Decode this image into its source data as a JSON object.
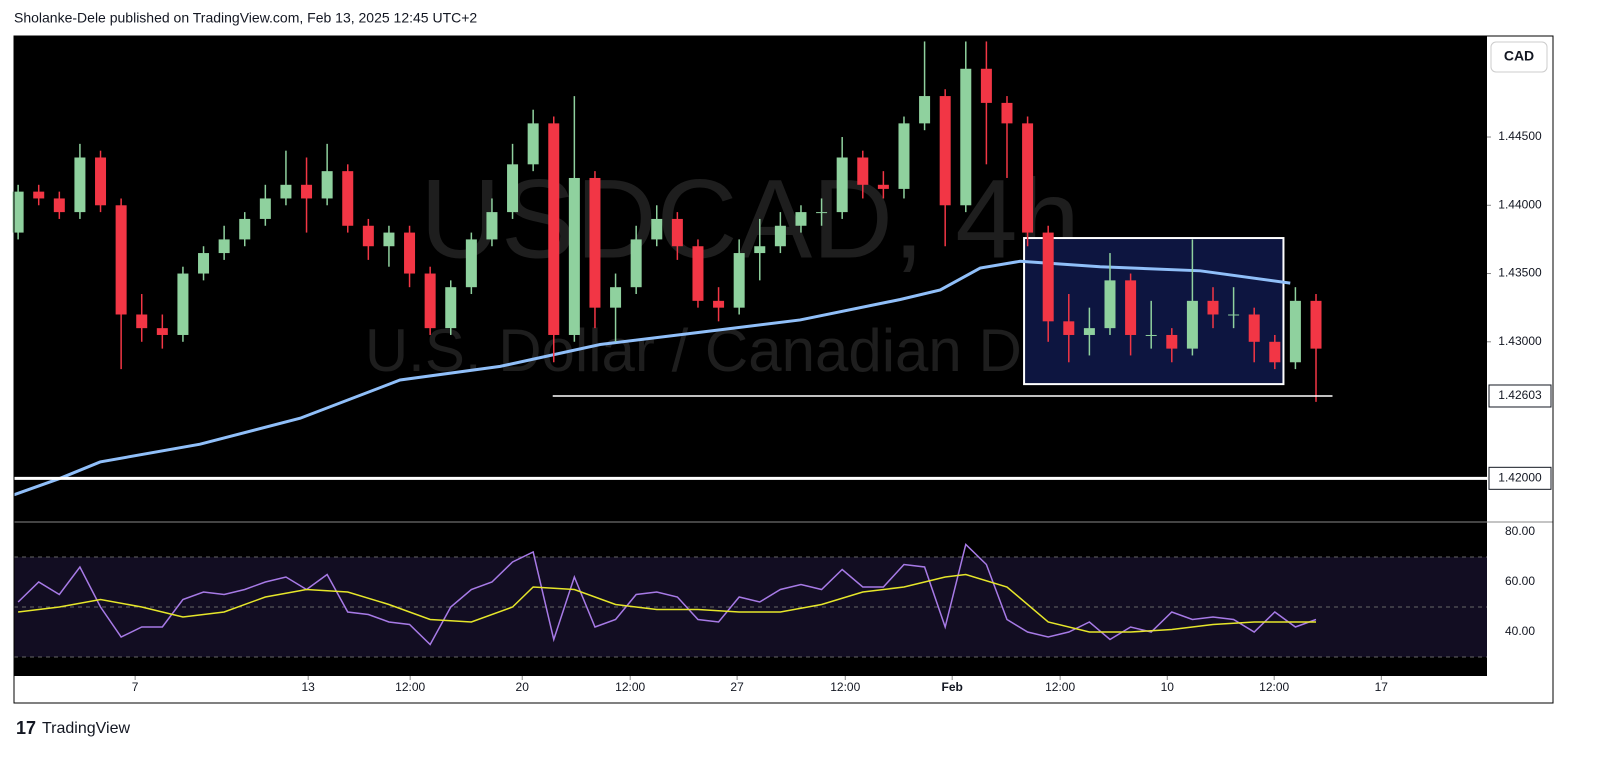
{
  "header": {
    "text": "Sholanke-Dele published on TradingView.com, Feb 13, 2025 12:45 UTC+2"
  },
  "footer": {
    "brand": "TradingView"
  },
  "currency_button": "CAD",
  "chart_data": [
    {
      "type": "candlestick",
      "watermark": "USDCAD, 4h",
      "subtitle": "U.S. Dollar / Canadian Dollar",
      "up_color": "#8fd19e",
      "down_color": "#f23645",
      "xlim": [
        -0.2,
        71.3
      ],
      "ylim": [
        1.4168,
        1.4524
      ],
      "yticks": [
        {
          "value": 1.445,
          "label": "1.44500"
        },
        {
          "value": 1.44,
          "label": "1.44000"
        },
        {
          "value": 1.435,
          "label": "1.43500"
        },
        {
          "value": 1.43,
          "label": "1.43000"
        }
      ],
      "open": [
        1.438,
        1.441,
        1.4405,
        1.4395,
        1.4435,
        1.44,
        1.432,
        1.431,
        1.4305,
        1.435,
        1.4365,
        1.4375,
        1.439,
        1.4405,
        1.4415,
        1.4405,
        1.4425,
        1.4385,
        1.437,
        1.438,
        1.435,
        1.431,
        1.434,
        1.4375,
        1.4395,
        1.443,
        1.446,
        1.4305,
        1.442,
        1.4325,
        1.434,
        1.4375,
        1.439,
        1.437,
        1.433,
        1.4325,
        1.4365,
        1.437,
        1.4385,
        1.4395,
        1.4395,
        1.4435,
        1.4415,
        1.4412,
        1.446,
        1.448,
        1.44,
        1.45,
        1.4475,
        1.446,
        1.438,
        1.4315,
        1.4305,
        1.431,
        1.4345,
        1.4305,
        1.4305,
        1.4295,
        1.433,
        1.432,
        1.432,
        1.43,
        1.4285,
        1.433
      ],
      "high": [
        1.4415,
        1.4415,
        1.441,
        1.4445,
        1.444,
        1.4405,
        1.4335,
        1.432,
        1.4355,
        1.437,
        1.4385,
        1.4395,
        1.4415,
        1.444,
        1.4435,
        1.4445,
        1.443,
        1.439,
        1.4385,
        1.4385,
        1.4355,
        1.4345,
        1.438,
        1.4405,
        1.4445,
        1.447,
        1.4465,
        1.448,
        1.4425,
        1.435,
        1.4385,
        1.44,
        1.4395,
        1.4375,
        1.434,
        1.4375,
        1.439,
        1.4395,
        1.44,
        1.4405,
        1.445,
        1.444,
        1.4425,
        1.4465,
        1.452,
        1.4485,
        1.452,
        1.452,
        1.448,
        1.4465,
        1.4385,
        1.4335,
        1.4325,
        1.4365,
        1.435,
        1.433,
        1.431,
        1.4375,
        1.434,
        1.434,
        1.4325,
        1.4305,
        1.434,
        1.4335
      ],
      "low": [
        1.4375,
        1.44,
        1.439,
        1.439,
        1.4395,
        1.428,
        1.43,
        1.4295,
        1.43,
        1.4345,
        1.436,
        1.437,
        1.4385,
        1.44,
        1.438,
        1.44,
        1.438,
        1.436,
        1.4355,
        1.434,
        1.4305,
        1.4305,
        1.4335,
        1.437,
        1.439,
        1.4425,
        1.4285,
        1.43,
        1.431,
        1.43,
        1.4335,
        1.437,
        1.436,
        1.4325,
        1.4315,
        1.432,
        1.4345,
        1.4365,
        1.438,
        1.4385,
        1.439,
        1.4405,
        1.4405,
        1.4405,
        1.4455,
        1.437,
        1.4395,
        1.443,
        1.442,
        1.437,
        1.43,
        1.4285,
        1.429,
        1.4305,
        1.429,
        1.4295,
        1.4285,
        1.429,
        1.431,
        1.431,
        1.4285,
        1.428,
        1.428,
        1.4256
      ],
      "close": [
        1.441,
        1.4405,
        1.4395,
        1.4435,
        1.44,
        1.432,
        1.431,
        1.4305,
        1.435,
        1.4365,
        1.4375,
        1.439,
        1.4405,
        1.4415,
        1.4405,
        1.4425,
        1.4385,
        1.437,
        1.438,
        1.435,
        1.431,
        1.434,
        1.4375,
        1.4395,
        1.443,
        1.446,
        1.4305,
        1.442,
        1.4325,
        1.434,
        1.4375,
        1.439,
        1.437,
        1.433,
        1.4325,
        1.4365,
        1.437,
        1.4385,
        1.4395,
        1.4395,
        1.4435,
        1.4415,
        1.4412,
        1.446,
        1.448,
        1.44,
        1.45,
        1.4475,
        1.446,
        1.438,
        1.4315,
        1.4305,
        1.431,
        1.4345,
        1.4305,
        1.4305,
        1.4295,
        1.433,
        1.432,
        1.432,
        1.43,
        1.4285,
        1.433,
        1.4295
      ],
      "ma": {
        "color": "#90bff9",
        "x": [
          -0.19,
          2.04,
          3.98,
          8.83,
          13.69,
          18.54,
          23.4,
          28.25,
          33.11,
          37.96,
          42.82,
          44.76,
          46.7,
          48.64,
          52.52,
          57.38,
          61.75
        ],
        "values": [
          1.4188,
          1.42,
          1.4212,
          1.4225,
          1.4244,
          1.4272,
          1.4282,
          1.4298,
          1.4307,
          1.4316,
          1.4331,
          1.4338,
          1.4354,
          1.4359,
          1.4355,
          1.4352,
          1.4343
        ]
      },
      "box": {
        "x": [
          48.83,
          61.42
        ],
        "y": [
          1.4269,
          1.4376
        ],
        "fill": "#0d1540"
      },
      "hlines": [
        {
          "value": 1.42603,
          "label": "1.42603",
          "x": [
            25.95,
            63.8
          ]
        },
        {
          "value": 1.42,
          "label": "1.42000"
        }
      ]
    },
    {
      "type": "line",
      "xlim": [
        -0.2,
        71.3
      ],
      "ylim": [
        22.4,
        84
      ],
      "yticks": [
        {
          "value": 80,
          "label": "80.00"
        },
        {
          "value": 60,
          "label": "60.00"
        },
        {
          "value": 40,
          "label": "40.00"
        }
      ],
      "band": [
        30,
        70
      ],
      "mid": 50,
      "xticks": [
        {
          "value": 5.68,
          "label": "7"
        },
        {
          "value": 14.08,
          "label": "13"
        },
        {
          "value": 19.03,
          "label": "12:00"
        },
        {
          "value": 24.47,
          "label": "20"
        },
        {
          "value": 29.71,
          "label": "12:00"
        },
        {
          "value": 34.9,
          "label": "27"
        },
        {
          "value": 40.15,
          "label": "12:00"
        },
        {
          "value": 45.34,
          "label": "Feb"
        },
        {
          "value": 50.58,
          "label": "12:00"
        },
        {
          "value": 55.78,
          "label": "10"
        },
        {
          "value": 60.97,
          "label": "12:00"
        },
        {
          "value": 66.17,
          "label": "17"
        }
      ],
      "series": [
        {
          "color": "#a77ae6",
          "x": [
            0,
            1,
            2,
            3,
            4,
            5,
            6,
            7,
            8,
            9,
            10,
            11,
            12,
            13,
            14,
            15,
            16,
            17,
            18,
            19,
            20,
            21,
            22,
            23,
            24,
            25,
            26,
            27,
            28,
            29,
            30,
            31,
            32,
            33,
            34,
            35,
            36,
            37,
            38,
            39,
            40,
            41,
            42,
            43,
            44,
            45,
            46,
            47,
            48,
            49,
            50,
            51,
            52,
            53,
            54,
            55,
            56,
            57,
            58,
            59,
            60,
            61,
            62,
            63
          ],
          "values": [
            52,
            60,
            55,
            66,
            50,
            38,
            42,
            42,
            53,
            56,
            55,
            57,
            60,
            62,
            57,
            63,
            48,
            47,
            44,
            43,
            35,
            50,
            57,
            60,
            68,
            72,
            37,
            62,
            42,
            45,
            55,
            56,
            54,
            45,
            44,
            54,
            52,
            57,
            59,
            57,
            65,
            58,
            58,
            67,
            66,
            42,
            75,
            67,
            45,
            40,
            38,
            40,
            44,
            37,
            42,
            40,
            48,
            45,
            46,
            45,
            40,
            48,
            42,
            45
          ]
        },
        {
          "color": "#e6e62a",
          "x": [
            0,
            2,
            4,
            6,
            8,
            10,
            12,
            14,
            16,
            18,
            20,
            22,
            24,
            25,
            27,
            29,
            31,
            33,
            35,
            37,
            39,
            41,
            43,
            45,
            46,
            48,
            50,
            52,
            54,
            56,
            58,
            60,
            62,
            63
          ],
          "values": [
            48,
            50,
            53,
            50,
            46,
            48,
            54,
            57,
            56,
            51,
            45,
            44,
            50,
            58,
            57,
            51,
            49,
            49,
            48,
            48,
            51,
            56,
            58,
            62,
            63,
            58,
            44,
            40,
            40,
            41,
            43,
            44,
            44,
            44
          ]
        }
      ]
    }
  ]
}
